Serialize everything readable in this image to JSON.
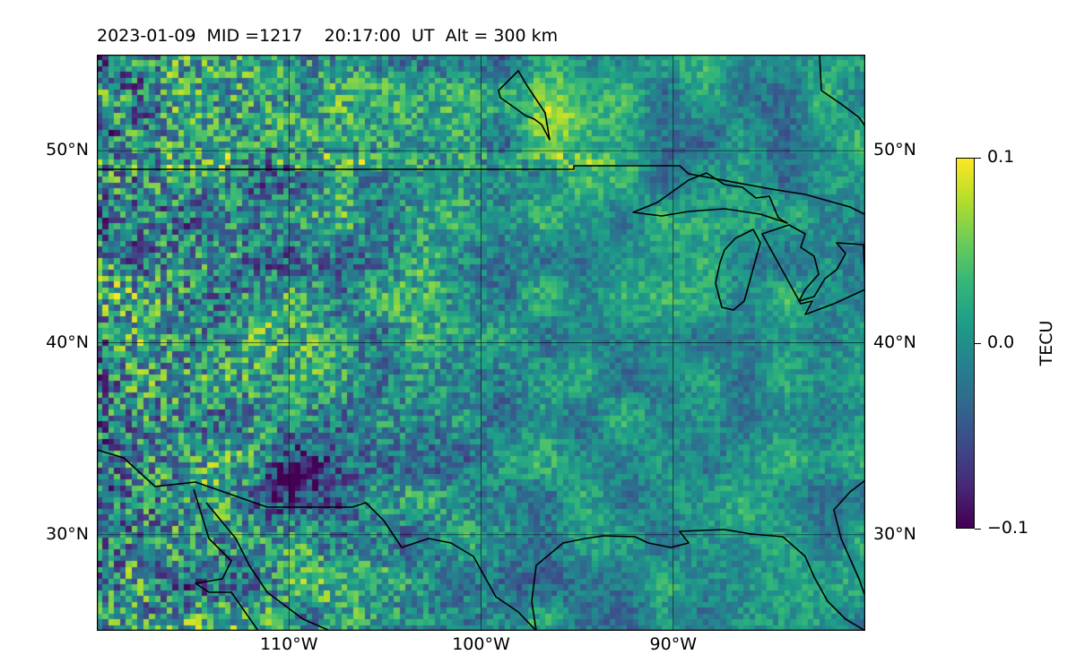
{
  "title": "2023-01-09  MID =1217    20:17:00  UT  Alt = 300 km",
  "map": {
    "extent": {
      "lon_min": -120,
      "lon_max": -80,
      "lat_min": 25,
      "lat_max": 55
    },
    "lat_ticks": [
      {
        "value": 50,
        "label": "50°N"
      },
      {
        "value": 40,
        "label": "40°N"
      },
      {
        "value": 30,
        "label": "30°N"
      }
    ],
    "lon_ticks": [
      {
        "value": -110,
        "label": "110°W"
      },
      {
        "value": -100,
        "label": "100°W"
      },
      {
        "value": -90,
        "label": "90°W"
      }
    ],
    "colormap": "viridis",
    "field": "TEC perturbation (dTEC)"
  },
  "colorbar": {
    "label": "TECU",
    "min": -0.1,
    "max": 0.1,
    "ticks": [
      {
        "value": 0.1,
        "label": "0.1"
      },
      {
        "value": 0.0,
        "label": "0.0"
      },
      {
        "value": -0.1,
        "label": "−0.1"
      }
    ]
  }
}
